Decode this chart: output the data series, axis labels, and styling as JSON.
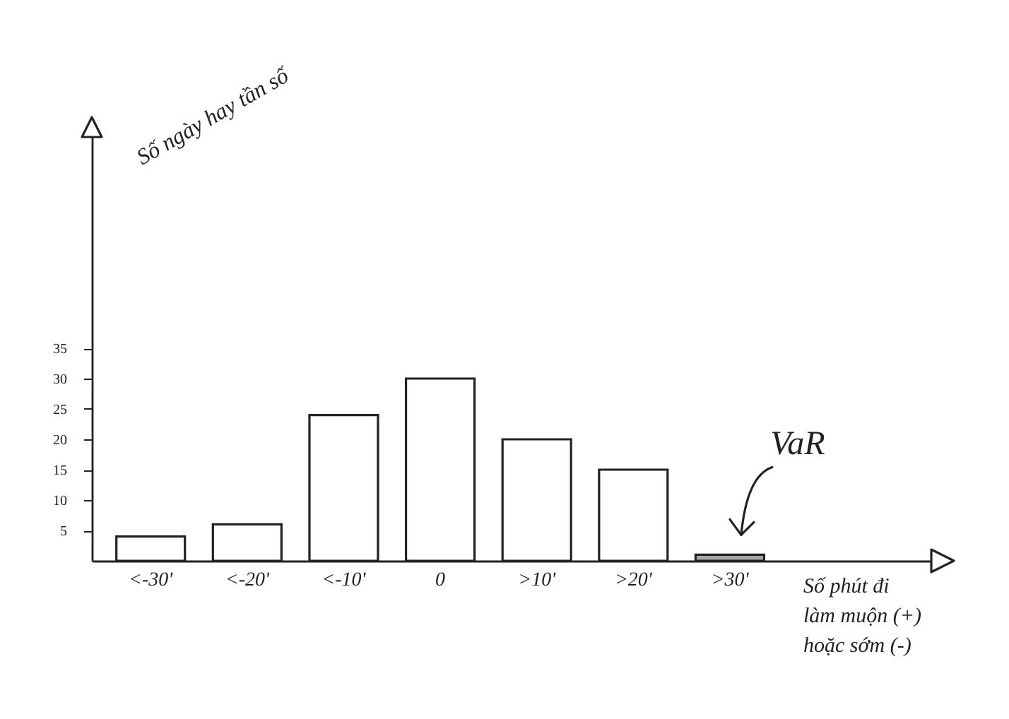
{
  "chart_data": {
    "type": "bar",
    "ylabel": "Số ngày hay tần số",
    "xlabel": "Số phút đi làm muộn (+) hoặc sớm (-)",
    "categories": [
      "<-30'",
      "<-20'",
      "<-10'",
      "0",
      ">10'",
      ">20'",
      ">30'"
    ],
    "values": [
      4,
      6,
      24,
      30,
      20,
      15,
      1
    ],
    "colors": [
      "#ffffff",
      "#ffffff",
      "#ffffff",
      "#ffffff",
      "#ffffff",
      "#ffffff",
      "#a6a6a6"
    ],
    "ylim": [
      0,
      70
    ],
    "yticks": [
      5,
      10,
      15,
      20,
      25,
      30,
      35
    ],
    "annotations": [
      {
        "text": "VaR",
        "x": ">30'",
        "y": 1
      }
    ]
  }
}
